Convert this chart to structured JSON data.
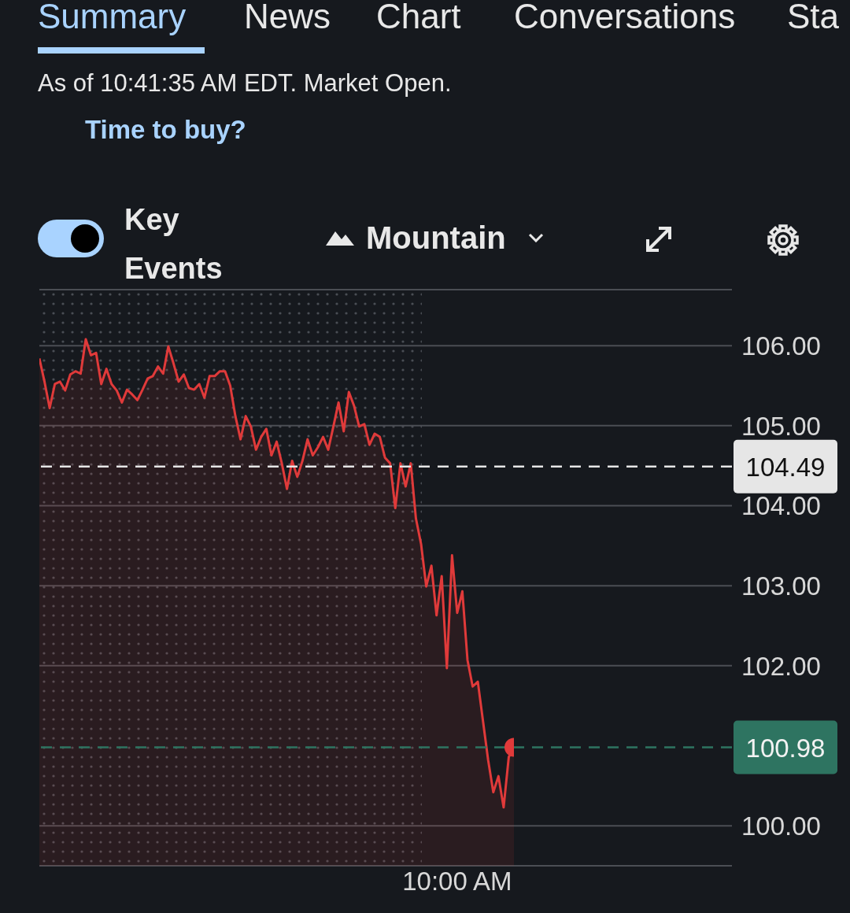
{
  "chart_data": {
    "type": "area",
    "subtitle": "As of 10:41:35 AM EDT. Market Open.",
    "annotations": [
      "Summary",
      "News",
      "Chart",
      "Conversations",
      "Sta",
      "Time to buy?",
      "Key Events",
      "Mountain"
    ],
    "categories": [
      null,
      null,
      null,
      null,
      null,
      null,
      null,
      null,
      null,
      null,
      null,
      null,
      null,
      null,
      null,
      null,
      null,
      null,
      null,
      null,
      null,
      null,
      null,
      null,
      null,
      null,
      null,
      null,
      null,
      null,
      null,
      null,
      null,
      null,
      null,
      null,
      null,
      null,
      null,
      null,
      null,
      null,
      null,
      null,
      null,
      null,
      null,
      null,
      null,
      null,
      null,
      null,
      null,
      null,
      null,
      null,
      null,
      null,
      null,
      null,
      null,
      null,
      null,
      null,
      null,
      null,
      null,
      null,
      null,
      null,
      null,
      null,
      null,
      null,
      null,
      null,
      null,
      null,
      null,
      null,
      null,
      "10:00 AM",
      null,
      null,
      null,
      null,
      null,
      null,
      null,
      null,
      null,
      null,
      null
    ],
    "series": [
      {
        "type": "area",
        "color": "#e03a3a",
        "values": [
          105.84,
          105.55,
          105.22,
          105.52,
          105.55,
          105.44,
          105.64,
          105.68,
          105.65,
          106.08,
          105.88,
          105.91,
          105.52,
          105.71,
          105.52,
          105.44,
          105.29,
          105.45,
          105.39,
          105.32,
          105.45,
          105.59,
          105.62,
          105.74,
          105.65,
          105.99,
          105.78,
          105.55,
          105.64,
          105.47,
          105.45,
          105.52,
          105.35,
          105.62,
          105.62,
          105.68,
          105.68,
          105.5,
          105.12,
          104.83,
          105.12,
          104.99,
          104.7,
          104.86,
          104.96,
          104.63,
          104.8,
          104.53,
          104.21,
          104.56,
          104.36,
          104.56,
          104.83,
          104.63,
          104.73,
          104.86,
          104.7,
          104.99,
          105.29,
          104.93,
          105.42,
          105.25,
          104.99,
          105.02,
          104.76,
          104.9,
          104.86,
          104.6,
          104.53,
          103.97,
          104.53,
          104.24,
          104.53,
          103.84,
          103.52,
          102.99,
          103.25,
          102.63,
          103.12,
          101.97,
          103.38,
          102.66,
          102.93,
          102.07,
          101.74,
          101.8,
          101.31,
          100.82,
          100.42,
          100.62,
          100.23,
          100.86,
          100.98
        ]
      },
      {
        "type": "scatter",
        "color": "#e03a3a",
        "marker": "circle",
        "values": [
          null,
          null,
          null,
          null,
          null,
          null,
          null,
          null,
          null,
          null,
          null,
          null,
          null,
          null,
          null,
          null,
          null,
          null,
          null,
          null,
          null,
          null,
          null,
          null,
          null,
          null,
          null,
          null,
          null,
          null,
          null,
          null,
          null,
          null,
          null,
          null,
          null,
          null,
          null,
          null,
          null,
          null,
          null,
          null,
          null,
          null,
          null,
          null,
          null,
          null,
          null,
          null,
          null,
          null,
          null,
          null,
          null,
          null,
          null,
          null,
          null,
          null,
          null,
          null,
          null,
          null,
          null,
          null,
          null,
          null,
          null,
          null,
          null,
          null,
          null,
          null,
          null,
          null,
          null,
          null,
          null,
          null,
          null,
          null,
          null,
          null,
          null,
          null,
          null,
          null,
          null,
          null,
          100.98
        ]
      }
    ],
    "ylim": [
      99.5,
      106.7
    ],
    "yticks": [
      {
        "value": 100,
        "label": "100.00"
      },
      {
        "value": 102,
        "label": "102.00"
      },
      {
        "value": 103,
        "label": "103.00"
      },
      {
        "value": 104,
        "label": "104.00"
      },
      {
        "value": 105,
        "label": "105.00"
      },
      {
        "value": 106,
        "label": "106.00"
      }
    ],
    "grid": "y",
    "ref_lines": [
      {
        "axis": "y",
        "value": 104.49,
        "label": "104.49",
        "color": "#e6e6e6",
        "line_style": "dashed"
      },
      {
        "axis": "y",
        "value": 100.98,
        "label": "100.98",
        "color": "#2e7461",
        "line_style": "dashed"
      }
    ]
  }
}
